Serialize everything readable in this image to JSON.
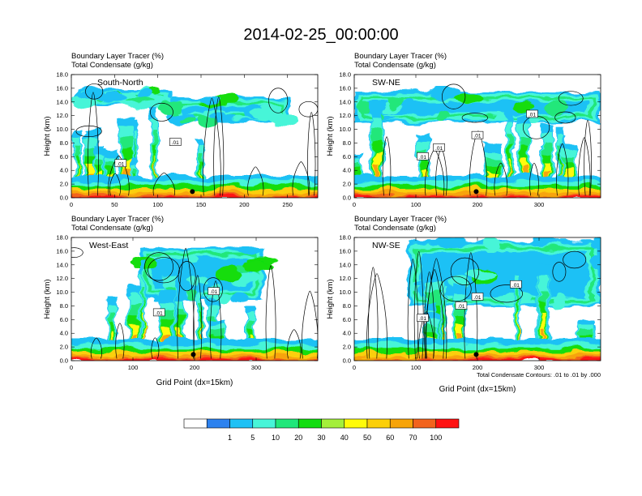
{
  "chart_data": [
    {
      "type": "heatmap",
      "title": "2014-02-25_00:00:00",
      "subtitle_lines": [
        "Boundary Layer Tracer   (%)",
        "Total Condensate   (g/kg)"
      ],
      "panel_label": "South-North",
      "xlabel": "",
      "ylabel": "Height (km)",
      "xlim": [
        0,
        285
      ],
      "ylim": [
        0,
        18
      ],
      "x_ticks": [
        0,
        50,
        100,
        150,
        200,
        250
      ],
      "y_ticks": [
        "0.0",
        "2.0",
        "4.0",
        "6.0",
        "8.0",
        "10.0",
        "12.0",
        "14.0",
        "16.0",
        "18.0"
      ],
      "contour_labels": [
        ".01",
        ".01"
      ],
      "marker_x": 140,
      "footnote": ""
    },
    {
      "type": "heatmap",
      "title": "",
      "subtitle_lines": [
        "Boundary Layer Tracer   (%)",
        "Total Condensate   (g/kg)"
      ],
      "panel_label": "SW-NE",
      "xlabel": "",
      "ylabel": "Height (km)",
      "xlim": [
        0,
        400
      ],
      "ylim": [
        0,
        18
      ],
      "x_ticks": [
        0,
        100,
        200,
        300
      ],
      "y_ticks": [
        "0.0",
        "2.0",
        "4.0",
        "6.0",
        "8.0",
        "10.0",
        "12.0",
        "14.0",
        "16.0",
        "18.0"
      ],
      "contour_labels": [
        ".01",
        ".01",
        ".01",
        ".01"
      ],
      "marker_x": 198,
      "footnote": ""
    },
    {
      "type": "heatmap",
      "title": "",
      "subtitle_lines": [
        "Boundary Layer Tracer   (%)",
        "Total Condensate   (g/kg)"
      ],
      "panel_label": "West-East",
      "xlabel": "Grid Point (dx=15km)",
      "ylabel": "Height (km)",
      "xlim": [
        0,
        400
      ],
      "ylim": [
        0,
        18
      ],
      "x_ticks": [
        0,
        100,
        200,
        300
      ],
      "y_ticks": [
        "0.0",
        "2.0",
        "4.0",
        "6.0",
        "8.0",
        "10.0",
        "12.0",
        "14.0",
        "16.0",
        "18.0"
      ],
      "contour_labels": [
        ".01",
        ".01"
      ],
      "marker_x": 198,
      "footnote": ""
    },
    {
      "type": "heatmap",
      "title": "",
      "subtitle_lines": [
        "Boundary Layer Tracer   (%)",
        "Total Condensate   (g/kg)"
      ],
      "panel_label": "NW-SE",
      "xlabel": "Grid Point (dx=15km)",
      "ylabel": "Height (km)",
      "xlim": [
        0,
        400
      ],
      "ylim": [
        0,
        18
      ],
      "x_ticks": [
        0,
        100,
        200,
        300
      ],
      "y_ticks": [
        "0.0",
        "2.0",
        "4.0",
        "6.0",
        "8.0",
        "10.0",
        "12.0",
        "14.0",
        "16.0",
        "18.0"
      ],
      "contour_labels": [
        ".01",
        ".01",
        ".01",
        ".01"
      ],
      "marker_x": 198,
      "footnote": "Total Condensate Contours: .01 to .01 by .000"
    }
  ],
  "colorbar": {
    "levels": [
      1,
      5,
      10,
      20,
      30,
      40,
      50,
      60,
      70,
      100
    ],
    "colors": [
      "#ffffff",
      "#2d82ef",
      "#1ec1f5",
      "#47f5d8",
      "#20e77a",
      "#12dd10",
      "#a4ef3b",
      "#fffb09",
      "#fbcf08",
      "#f7a409",
      "#f2631d",
      "#ff1212"
    ]
  }
}
